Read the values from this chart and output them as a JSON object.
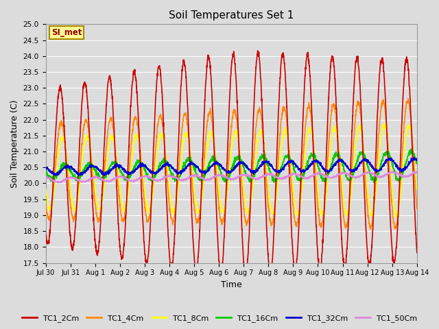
{
  "title": "Soil Temperatures Set 1",
  "xlabel": "Time",
  "ylabel": "Soil Temperature (C)",
  "ylim": [
    17.5,
    25.0
  ],
  "yticks": [
    17.5,
    18.0,
    18.5,
    19.0,
    19.5,
    20.0,
    20.5,
    21.0,
    21.5,
    22.0,
    22.5,
    23.0,
    23.5,
    24.0,
    24.5,
    25.0
  ],
  "bg_color": "#dcdcdc",
  "plot_bg_color": "#dcdcdc",
  "series_colors": {
    "TC1_2Cm": "#cc0000",
    "TC1_4Cm": "#ff8800",
    "TC1_8Cm": "#ffff00",
    "TC1_16Cm": "#00cc00",
    "TC1_32Cm": "#0000cc",
    "TC1_50Cm": "#dd88dd"
  },
  "annotation_text": "SI_met",
  "annotation_color": "#990000",
  "annotation_bg": "#ffff99",
  "annotation_edge": "#aa8800",
  "grid_color": "#ffffff",
  "linewidth": 1.2,
  "n_days": 15,
  "n_pts_per_day": 144
}
